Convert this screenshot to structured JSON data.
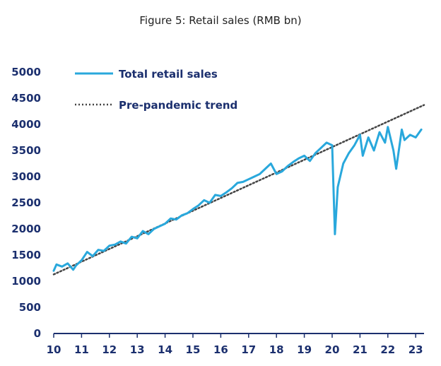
{
  "chart_data": {
    "type": "line",
    "title": "Figure 5: Retail sales (RMB bn)",
    "xlabel": "",
    "ylabel": "",
    "xlim": [
      2010,
      2023.3
    ],
    "ylim": [
      0,
      5000
    ],
    "yticks": [
      0,
      500,
      1000,
      1500,
      2000,
      2500,
      3000,
      3500,
      4000,
      4500,
      5000
    ],
    "xticks": [
      {
        "label": "10",
        "value": 2010
      },
      {
        "label": "11",
        "value": 2011
      },
      {
        "label": "12",
        "value": 2012
      },
      {
        "label": "13",
        "value": 2013
      },
      {
        "label": "14",
        "value": 2014
      },
      {
        "label": "15",
        "value": 2015
      },
      {
        "label": "16",
        "value": 2016
      },
      {
        "label": "17",
        "value": 2017
      },
      {
        "label": "18",
        "value": 2018
      },
      {
        "label": "19",
        "value": 2019
      },
      {
        "label": "20",
        "value": 2020
      },
      {
        "label": "21",
        "value": 2021
      },
      {
        "label": "22",
        "value": 2022
      },
      {
        "label": "23",
        "value": 2023
      }
    ],
    "legend_position": "top-left",
    "grid": false,
    "series": [
      {
        "name": "Total retail sales",
        "style": "solid",
        "color": "#29a8dc",
        "x": [
          2010.0,
          2010.1,
          2010.3,
          2010.5,
          2010.7,
          2010.8,
          2011.0,
          2011.2,
          2011.4,
          2011.6,
          2011.8,
          2012.0,
          2012.2,
          2012.4,
          2012.6,
          2012.8,
          2013.0,
          2013.2,
          2013.4,
          2013.6,
          2013.8,
          2014.0,
          2014.2,
          2014.4,
          2014.6,
          2014.8,
          2015.0,
          2015.2,
          2015.4,
          2015.6,
          2015.8,
          2016.0,
          2016.2,
          2016.4,
          2016.6,
          2016.8,
          2017.0,
          2017.2,
          2017.4,
          2017.6,
          2017.8,
          2018.0,
          2018.2,
          2018.4,
          2018.6,
          2018.8,
          2019.0,
          2019.2,
          2019.4,
          2019.6,
          2019.8,
          2020.0,
          2020.1,
          2020.2,
          2020.4,
          2020.6,
          2020.8,
          2021.0,
          2021.1,
          2021.3,
          2021.5,
          2021.7,
          2021.9,
          2022.0,
          2022.2,
          2022.3,
          2022.5,
          2022.6,
          2022.8,
          2023.0,
          2023.2
        ],
        "y": [
          1200,
          1320,
          1280,
          1340,
          1220,
          1300,
          1400,
          1560,
          1480,
          1600,
          1580,
          1680,
          1700,
          1760,
          1720,
          1850,
          1820,
          1960,
          1900,
          2000,
          2050,
          2100,
          2200,
          2180,
          2260,
          2300,
          2380,
          2450,
          2550,
          2500,
          2650,
          2630,
          2700,
          2780,
          2880,
          2900,
          2950,
          3000,
          3050,
          3150,
          3250,
          3050,
          3100,
          3200,
          3280,
          3350,
          3400,
          3300,
          3450,
          3550,
          3650,
          3600,
          1900,
          2800,
          3250,
          3450,
          3600,
          3800,
          3400,
          3750,
          3500,
          3850,
          3650,
          3950,
          3500,
          3150,
          3900,
          3700,
          3800,
          3750,
          3900
        ]
      },
      {
        "name": "Pre-pandemic trend",
        "style": "dotted",
        "color": "#444444",
        "x": [
          2010.0,
          2023.3
        ],
        "y": [
          1130,
          4370
        ]
      }
    ]
  }
}
